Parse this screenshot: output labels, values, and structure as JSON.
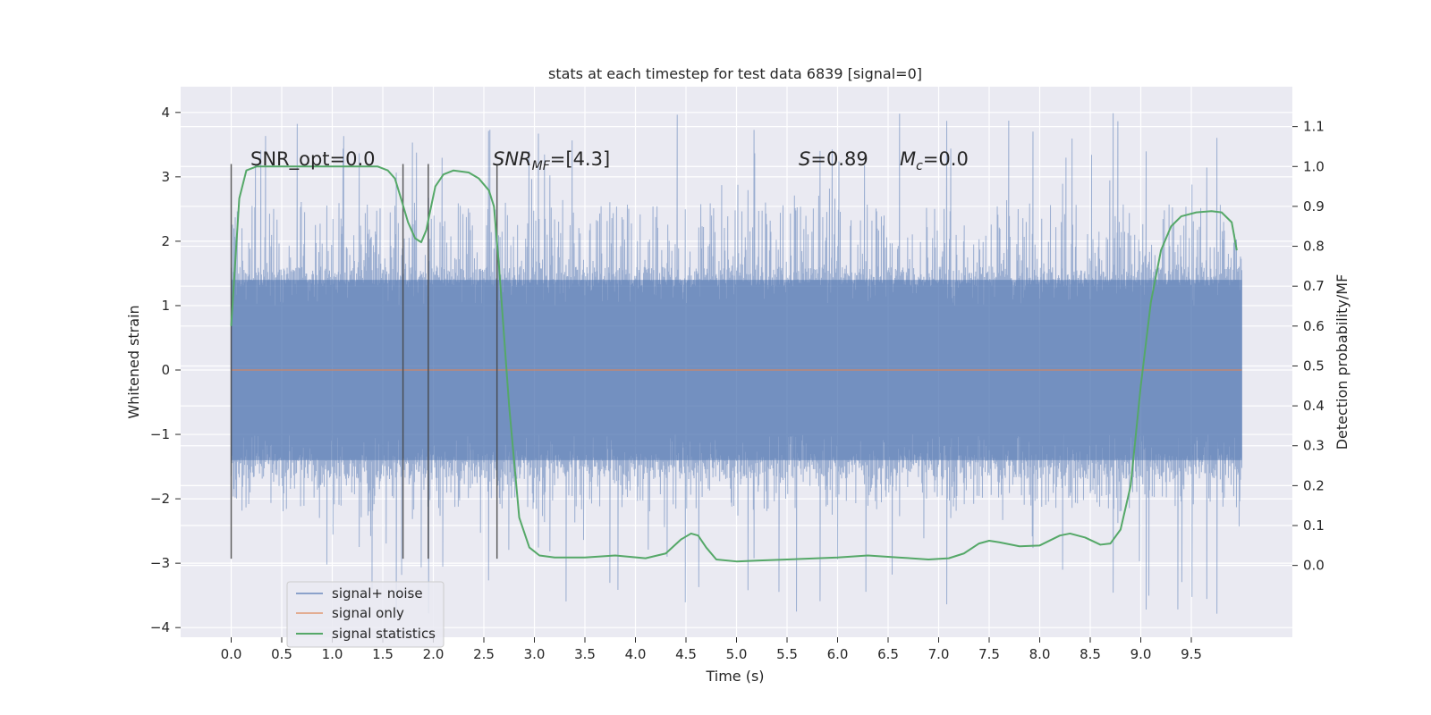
{
  "chart_data": {
    "type": "line",
    "title": "stats at each timestep for test data 6839 [signal=0]",
    "xlabel": "Time (s)",
    "ylabel": "Whitened strain",
    "y2label": "Detection probability/MF",
    "xlim": [
      -0.5,
      10.5
    ],
    "ylim": [
      -4.15,
      4.4
    ],
    "y2lim": [
      -0.18,
      1.2
    ],
    "x_ticks": [
      0.0,
      0.5,
      1.0,
      1.5,
      2.0,
      2.5,
      3.0,
      3.5,
      4.0,
      4.5,
      5.0,
      5.5,
      6.0,
      6.5,
      7.0,
      7.5,
      8.0,
      8.5,
      9.0,
      9.5
    ],
    "x_tick_labels": [
      "0.0",
      "0.5",
      "1.0",
      "1.5",
      "2.0",
      "2.5",
      "3.0",
      "3.5",
      "4.0",
      "4.5",
      "5.0",
      "5.5",
      "6.0",
      "6.5",
      "7.0",
      "7.5",
      "8.0",
      "8.5",
      "9.0",
      "9.5"
    ],
    "y_ticks": [
      -4,
      -3,
      -2,
      -1,
      0,
      1,
      2,
      3,
      4
    ],
    "y_tick_labels": [
      "−4",
      "−3",
      "−2",
      "−1",
      "0",
      "1",
      "2",
      "3",
      "4"
    ],
    "y2_ticks": [
      0.0,
      0.1,
      0.2,
      0.3,
      0.4,
      0.5,
      0.6,
      0.7,
      0.8,
      0.9,
      1.0,
      1.1
    ],
    "y2_tick_labels": [
      "0.0",
      "0.1",
      "0.2",
      "0.3",
      "0.4",
      "0.5",
      "0.6",
      "0.7",
      "0.8",
      "0.9",
      "1.0",
      "1.1"
    ],
    "grid": true,
    "legend_position": "lower-left",
    "series": [
      {
        "name": "signal+ noise",
        "color": "#4c72b0",
        "style": "dense noise trace",
        "x_range": [
          0.0,
          10.0
        ],
        "band_range": [
          -1.4,
          1.4
        ],
        "peak_range": [
          -3.8,
          4.05
        ]
      },
      {
        "name": "signal only",
        "color": "#dd8452",
        "x": [
          0.0,
          10.0
        ],
        "y": [
          0.0,
          0.0
        ]
      },
      {
        "name": "signal statistics",
        "color": "#55a868",
        "axis": "right",
        "x": [
          0.0,
          0.08,
          0.15,
          0.25,
          0.4,
          0.6,
          0.9,
          1.2,
          1.45,
          1.55,
          1.62,
          1.68,
          1.75,
          1.82,
          1.88,
          1.93,
          1.97,
          2.02,
          2.1,
          2.2,
          2.35,
          2.45,
          2.55,
          2.6,
          2.65,
          2.75,
          2.85,
          2.95,
          3.05,
          3.2,
          3.5,
          3.8,
          4.1,
          4.3,
          4.45,
          4.55,
          4.62,
          4.7,
          4.8,
          5.0,
          5.2,
          5.5,
          6.0,
          6.3,
          6.6,
          6.9,
          7.1,
          7.25,
          7.4,
          7.5,
          7.6,
          7.8,
          8.0,
          8.2,
          8.3,
          8.45,
          8.6,
          8.7,
          8.8,
          8.9,
          9.0,
          9.1,
          9.2,
          9.3,
          9.4,
          9.55,
          9.7,
          9.8,
          9.9,
          9.95
        ],
        "y": [
          0.6,
          0.92,
          0.99,
          1.0,
          1.0,
          1.0,
          1.0,
          1.0,
          1.0,
          0.99,
          0.97,
          0.92,
          0.86,
          0.82,
          0.81,
          0.84,
          0.89,
          0.95,
          0.98,
          0.99,
          0.985,
          0.97,
          0.94,
          0.9,
          0.75,
          0.4,
          0.12,
          0.045,
          0.025,
          0.02,
          0.02,
          0.025,
          0.018,
          0.03,
          0.065,
          0.08,
          0.075,
          0.045,
          0.015,
          0.01,
          0.012,
          0.015,
          0.02,
          0.025,
          0.02,
          0.015,
          0.018,
          0.03,
          0.055,
          0.062,
          0.058,
          0.048,
          0.05,
          0.075,
          0.08,
          0.07,
          0.052,
          0.055,
          0.09,
          0.2,
          0.45,
          0.66,
          0.79,
          0.85,
          0.875,
          0.885,
          0.888,
          0.885,
          0.86,
          0.79
        ]
      }
    ],
    "vlines": [
      0.0,
      1.7,
      1.95,
      2.63
    ],
    "vline_range": [
      -2.93,
      3.2
    ],
    "annotations": {
      "snr_opt": "SNR_opt=0.0",
      "snr_mf_base": "SNR",
      "snr_mf_sub": "MF",
      "snr_mf_value": "=[4.3]",
      "s_label": "S",
      "s_value": "=0.89",
      "mc_label": "M",
      "mc_sub": "c",
      "mc_value": "=0.0"
    }
  }
}
